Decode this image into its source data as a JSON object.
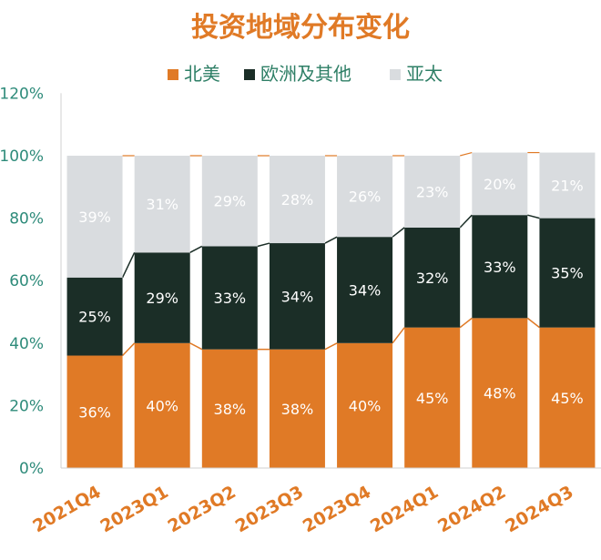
{
  "colors": {
    "north_america": "#E07A26",
    "europe_other": "#1B2E27",
    "asia_pacific": "#D9DCDF",
    "axis_text": "#2E8B7A",
    "title": "#E07A26",
    "xtick": "#E07A26",
    "legend_text": "#2E7F66",
    "label_dark": "#FFFFFF",
    "label_light": "#FFFFFF",
    "gridline": "#D0D0D0"
  },
  "chart_data": {
    "type": "bar",
    "stacked": true,
    "title": "投资地域分布变化",
    "categories": [
      "2021Q4",
      "2023Q1",
      "2023Q2",
      "2023Q3",
      "2023Q4",
      "2024Q1",
      "2024Q2",
      "2024Q3"
    ],
    "series": [
      {
        "name": "北美",
        "values": [
          36,
          40,
          38,
          38,
          40,
          45,
          48,
          45
        ]
      },
      {
        "name": "欧洲及其他",
        "values": [
          25,
          29,
          33,
          34,
          34,
          32,
          33,
          35
        ]
      },
      {
        "name": "亚太",
        "values": [
          39,
          31,
          29,
          28,
          26,
          23,
          20,
          21
        ]
      }
    ],
    "data_labels": [
      [
        "36%",
        "40%",
        "38%",
        "38%",
        "40%",
        "45%",
        "48%",
        "45%"
      ],
      [
        "25%",
        "29%",
        "33%",
        "34%",
        "34%",
        "32%",
        "33%",
        "35%"
      ],
      [
        "39%",
        "31%",
        "29%",
        "28%",
        "26%",
        "23%",
        "20%",
        "21%"
      ]
    ],
    "y_ticks": [
      "0%",
      "20%",
      "40%",
      "60%",
      "80%",
      "100%",
      "120%"
    ],
    "ylim": [
      0,
      120
    ],
    "legend_position": "top",
    "grid": false,
    "xtick_rotation": -30
  }
}
